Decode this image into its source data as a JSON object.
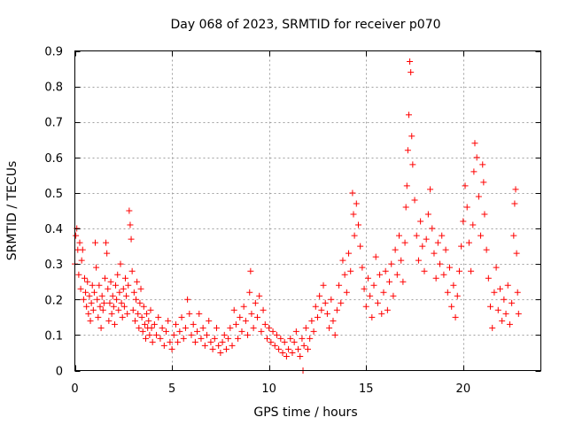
{
  "chart_data": {
    "type": "scatter",
    "title": "Day 068 of 2023, SRMTID for receiver p070",
    "xlabel": "GPS time / hours",
    "ylabel": "SRMTID / TECUs",
    "xlim": [
      0,
      24
    ],
    "ylim": [
      0,
      0.9
    ],
    "xticks": [
      0,
      5,
      10,
      15,
      20
    ],
    "yticks": [
      0,
      0.1,
      0.2,
      0.3,
      0.4,
      0.5,
      0.6,
      0.7,
      0.8,
      0.9
    ],
    "xtick_labels": [
      "0",
      "5",
      "10",
      "15",
      "20"
    ],
    "ytick_labels": [
      "0",
      "0.1",
      "0.2",
      "0.3",
      "0.4",
      "0.5",
      "0.6",
      "0.7",
      "0.8",
      "0.9"
    ],
    "grid": true,
    "marker": "+",
    "color": "#ff0000",
    "series": [
      {
        "name": "SRMTID",
        "points": [
          [
            0.0,
            0.3
          ],
          [
            0.05,
            0.38
          ],
          [
            0.1,
            0.4
          ],
          [
            0.15,
            0.34
          ],
          [
            0.2,
            0.27
          ],
          [
            0.25,
            0.36
          ],
          [
            0.3,
            0.23
          ],
          [
            0.35,
            0.31
          ],
          [
            0.4,
            0.34
          ],
          [
            0.45,
            0.2
          ],
          [
            0.5,
            0.26
          ],
          [
            0.55,
            0.22
          ],
          [
            0.6,
            0.18
          ],
          [
            0.65,
            0.25
          ],
          [
            0.7,
            0.16
          ],
          [
            0.75,
            0.21
          ],
          [
            0.8,
            0.14
          ],
          [
            0.85,
            0.19
          ],
          [
            0.9,
            0.24
          ],
          [
            0.95,
            0.17
          ],
          [
            1.0,
            0.22
          ],
          [
            1.05,
            0.36
          ],
          [
            1.1,
            0.29
          ],
          [
            1.15,
            0.2
          ],
          [
            1.2,
            0.15
          ],
          [
            1.25,
            0.24
          ],
          [
            1.3,
            0.18
          ],
          [
            1.35,
            0.12
          ],
          [
            1.4,
            0.21
          ],
          [
            1.45,
            0.17
          ],
          [
            1.5,
            0.19
          ],
          [
            1.55,
            0.26
          ],
          [
            1.6,
            0.36
          ],
          [
            1.65,
            0.33
          ],
          [
            1.7,
            0.23
          ],
          [
            1.75,
            0.14
          ],
          [
            1.8,
            0.19
          ],
          [
            1.85,
            0.25
          ],
          [
            1.9,
            0.16
          ],
          [
            1.95,
            0.21
          ],
          [
            2.0,
            0.18
          ],
          [
            2.05,
            0.13
          ],
          [
            2.1,
            0.24
          ],
          [
            2.15,
            0.2
          ],
          [
            2.2,
            0.27
          ],
          [
            2.25,
            0.17
          ],
          [
            2.3,
            0.22
          ],
          [
            2.35,
            0.3
          ],
          [
            2.4,
            0.19
          ],
          [
            2.45,
            0.15
          ],
          [
            2.5,
            0.23
          ],
          [
            2.55,
            0.18
          ],
          [
            2.6,
            0.26
          ],
          [
            2.65,
            0.21
          ],
          [
            2.7,
            0.16
          ],
          [
            2.75,
            0.24
          ],
          [
            2.8,
            0.45
          ],
          [
            2.85,
            0.41
          ],
          [
            2.9,
            0.37
          ],
          [
            2.95,
            0.28
          ],
          [
            3.0,
            0.17
          ],
          [
            3.05,
            0.22
          ],
          [
            3.1,
            0.14
          ],
          [
            3.15,
            0.2
          ],
          [
            3.2,
            0.25
          ],
          [
            3.25,
            0.16
          ],
          [
            3.3,
            0.12
          ],
          [
            3.35,
            0.19
          ],
          [
            3.4,
            0.23
          ],
          [
            3.45,
            0.15
          ],
          [
            3.5,
            0.11
          ],
          [
            3.55,
            0.18
          ],
          [
            3.6,
            0.13
          ],
          [
            3.65,
            0.09
          ],
          [
            3.7,
            0.16
          ],
          [
            3.75,
            0.12
          ],
          [
            3.8,
            0.14
          ],
          [
            3.85,
            0.1
          ],
          [
            3.9,
            0.17
          ],
          [
            3.95,
            0.12
          ],
          [
            4.0,
            0.08
          ],
          [
            4.1,
            0.13
          ],
          [
            4.2,
            0.1
          ],
          [
            4.3,
            0.15
          ],
          [
            4.4,
            0.09
          ],
          [
            4.5,
            0.12
          ],
          [
            4.6,
            0.07
          ],
          [
            4.7,
            0.11
          ],
          [
            4.8,
            0.14
          ],
          [
            4.9,
            0.08
          ],
          [
            5.0,
            0.06
          ],
          [
            5.1,
            0.1
          ],
          [
            5.2,
            0.13
          ],
          [
            5.3,
            0.08
          ],
          [
            5.4,
            0.11
          ],
          [
            5.5,
            0.15
          ],
          [
            5.6,
            0.09
          ],
          [
            5.7,
            0.12
          ],
          [
            5.8,
            0.2
          ],
          [
            5.9,
            0.16
          ],
          [
            6.0,
            0.1
          ],
          [
            6.1,
            0.13
          ],
          [
            6.2,
            0.08
          ],
          [
            6.3,
            0.11
          ],
          [
            6.4,
            0.16
          ],
          [
            6.5,
            0.09
          ],
          [
            6.6,
            0.12
          ],
          [
            6.7,
            0.07
          ],
          [
            6.8,
            0.1
          ],
          [
            6.9,
            0.14
          ],
          [
            7.0,
            0.08
          ],
          [
            7.1,
            0.06
          ],
          [
            7.2,
            0.09
          ],
          [
            7.3,
            0.12
          ],
          [
            7.4,
            0.07
          ],
          [
            7.5,
            0.05
          ],
          [
            7.6,
            0.08
          ],
          [
            7.7,
            0.1
          ],
          [
            7.8,
            0.06
          ],
          [
            7.9,
            0.09
          ],
          [
            8.0,
            0.12
          ],
          [
            8.1,
            0.07
          ],
          [
            8.2,
            0.17
          ],
          [
            8.3,
            0.13
          ],
          [
            8.4,
            0.09
          ],
          [
            8.5,
            0.15
          ],
          [
            8.6,
            0.11
          ],
          [
            8.7,
            0.18
          ],
          [
            8.8,
            0.14
          ],
          [
            8.9,
            0.1
          ],
          [
            9.0,
            0.22
          ],
          [
            9.05,
            0.28
          ],
          [
            9.1,
            0.16
          ],
          [
            9.2,
            0.12
          ],
          [
            9.3,
            0.19
          ],
          [
            9.4,
            0.15
          ],
          [
            9.5,
            0.21
          ],
          [
            9.6,
            0.11
          ],
          [
            9.7,
            0.17
          ],
          [
            9.8,
            0.13
          ],
          [
            9.9,
            0.09
          ],
          [
            10.0,
            0.12
          ],
          [
            10.1,
            0.08
          ],
          [
            10.2,
            0.11
          ],
          [
            10.3,
            0.07
          ],
          [
            10.4,
            0.1
          ],
          [
            10.5,
            0.06
          ],
          [
            10.6,
            0.09
          ],
          [
            10.7,
            0.05
          ],
          [
            10.8,
            0.08
          ],
          [
            10.9,
            0.04
          ],
          [
            11.0,
            0.06
          ],
          [
            11.1,
            0.09
          ],
          [
            11.2,
            0.05
          ],
          [
            11.3,
            0.08
          ],
          [
            11.4,
            0.11
          ],
          [
            11.5,
            0.06
          ],
          [
            11.6,
            0.04
          ],
          [
            11.7,
            0.09
          ],
          [
            11.75,
            0.0
          ],
          [
            11.8,
            0.07
          ],
          [
            11.9,
            0.12
          ],
          [
            12.0,
            0.06
          ],
          [
            12.1,
            0.09
          ],
          [
            12.2,
            0.14
          ],
          [
            12.3,
            0.11
          ],
          [
            12.4,
            0.18
          ],
          [
            12.5,
            0.15
          ],
          [
            12.6,
            0.21
          ],
          [
            12.7,
            0.17
          ],
          [
            12.8,
            0.24
          ],
          [
            12.9,
            0.19
          ],
          [
            13.0,
            0.16
          ],
          [
            13.1,
            0.12
          ],
          [
            13.2,
            0.2
          ],
          [
            13.3,
            0.14
          ],
          [
            13.4,
            0.1
          ],
          [
            13.5,
            0.17
          ],
          [
            13.6,
            0.24
          ],
          [
            13.7,
            0.19
          ],
          [
            13.8,
            0.31
          ],
          [
            13.9,
            0.27
          ],
          [
            14.0,
            0.22
          ],
          [
            14.1,
            0.33
          ],
          [
            14.2,
            0.28
          ],
          [
            14.3,
            0.5
          ],
          [
            14.35,
            0.44
          ],
          [
            14.4,
            0.38
          ],
          [
            14.5,
            0.47
          ],
          [
            14.6,
            0.41
          ],
          [
            14.7,
            0.35
          ],
          [
            14.8,
            0.29
          ],
          [
            14.9,
            0.23
          ],
          [
            15.0,
            0.18
          ],
          [
            15.1,
            0.26
          ],
          [
            15.2,
            0.21
          ],
          [
            15.3,
            0.15
          ],
          [
            15.4,
            0.24
          ],
          [
            15.5,
            0.32
          ],
          [
            15.6,
            0.19
          ],
          [
            15.7,
            0.27
          ],
          [
            15.8,
            0.16
          ],
          [
            15.9,
            0.22
          ],
          [
            16.0,
            0.28
          ],
          [
            16.1,
            0.17
          ],
          [
            16.2,
            0.25
          ],
          [
            16.3,
            0.3
          ],
          [
            16.4,
            0.21
          ],
          [
            16.5,
            0.34
          ],
          [
            16.6,
            0.27
          ],
          [
            16.7,
            0.38
          ],
          [
            16.8,
            0.31
          ],
          [
            16.9,
            0.25
          ],
          [
            17.0,
            0.36
          ],
          [
            17.05,
            0.46
          ],
          [
            17.1,
            0.52
          ],
          [
            17.15,
            0.62
          ],
          [
            17.2,
            0.72
          ],
          [
            17.25,
            0.87
          ],
          [
            17.3,
            0.84
          ],
          [
            17.35,
            0.66
          ],
          [
            17.4,
            0.58
          ],
          [
            17.5,
            0.48
          ],
          [
            17.6,
            0.38
          ],
          [
            17.7,
            0.31
          ],
          [
            17.8,
            0.42
          ],
          [
            17.9,
            0.35
          ],
          [
            18.0,
            0.28
          ],
          [
            18.1,
            0.37
          ],
          [
            18.2,
            0.44
          ],
          [
            18.3,
            0.51
          ],
          [
            18.4,
            0.4
          ],
          [
            18.5,
            0.33
          ],
          [
            18.6,
            0.26
          ],
          [
            18.7,
            0.36
          ],
          [
            18.8,
            0.3
          ],
          [
            18.9,
            0.38
          ],
          [
            19.0,
            0.27
          ],
          [
            19.1,
            0.34
          ],
          [
            19.2,
            0.22
          ],
          [
            19.3,
            0.29
          ],
          [
            19.4,
            0.18
          ],
          [
            19.5,
            0.24
          ],
          [
            19.6,
            0.15
          ],
          [
            19.7,
            0.21
          ],
          [
            19.8,
            0.28
          ],
          [
            19.9,
            0.35
          ],
          [
            20.0,
            0.42
          ],
          [
            20.1,
            0.52
          ],
          [
            20.2,
            0.46
          ],
          [
            20.3,
            0.36
          ],
          [
            20.4,
            0.28
          ],
          [
            20.5,
            0.41
          ],
          [
            20.55,
            0.56
          ],
          [
            20.6,
            0.64
          ],
          [
            20.7,
            0.6
          ],
          [
            20.8,
            0.49
          ],
          [
            20.9,
            0.38
          ],
          [
            21.0,
            0.58
          ],
          [
            21.05,
            0.53
          ],
          [
            21.1,
            0.44
          ],
          [
            21.2,
            0.34
          ],
          [
            21.3,
            0.26
          ],
          [
            21.4,
            0.18
          ],
          [
            21.5,
            0.12
          ],
          [
            21.6,
            0.22
          ],
          [
            21.7,
            0.29
          ],
          [
            21.8,
            0.17
          ],
          [
            21.9,
            0.23
          ],
          [
            22.0,
            0.14
          ],
          [
            22.1,
            0.2
          ],
          [
            22.2,
            0.16
          ],
          [
            22.3,
            0.24
          ],
          [
            22.4,
            0.13
          ],
          [
            22.5,
            0.19
          ],
          [
            22.6,
            0.38
          ],
          [
            22.65,
            0.47
          ],
          [
            22.7,
            0.51
          ],
          [
            22.75,
            0.33
          ],
          [
            22.8,
            0.22
          ],
          [
            22.85,
            0.16
          ]
        ]
      }
    ]
  }
}
